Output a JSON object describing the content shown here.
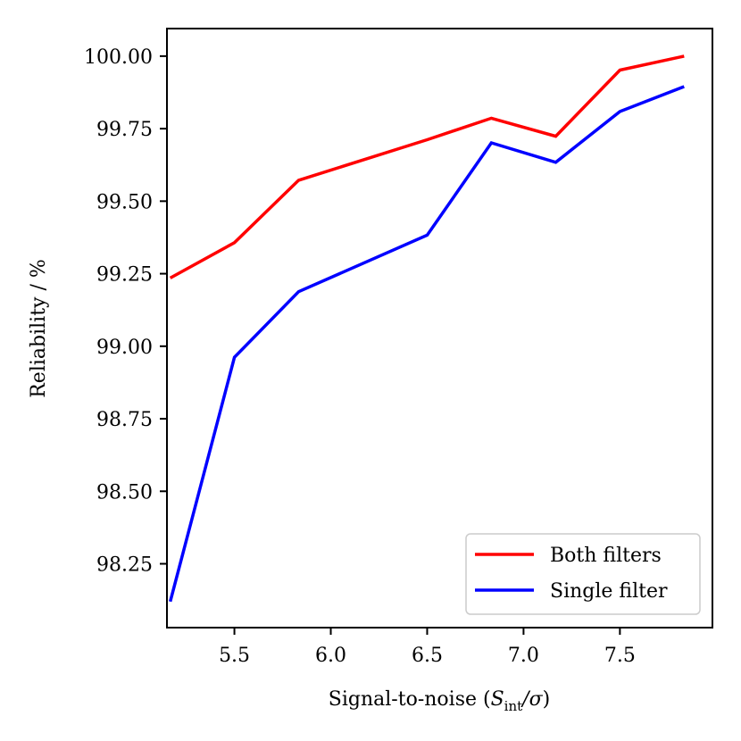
{
  "chart_data": {
    "type": "line",
    "title": "",
    "xlabel": "Signal-to-noise (",
    "xlabel_math": {
      "S": "S",
      "sub": "int",
      "rest": "/σ"
    },
    "xlabel_close": ")",
    "ylabel": "Reliability / %",
    "xlim": [
      5.15,
      7.98
    ],
    "ylim": [
      98.03,
      100.095
    ],
    "xticks": [
      5.5,
      6.0,
      6.5,
      7.0,
      7.5
    ],
    "xtick_labels": [
      "5.5",
      "6.0",
      "6.5",
      "7.0",
      "7.5"
    ],
    "yticks": [
      98.25,
      98.5,
      98.75,
      99.0,
      99.25,
      99.5,
      99.75,
      100.0
    ],
    "ytick_labels": [
      "98.25",
      "98.50",
      "98.75",
      "99.00",
      "99.25",
      "99.50",
      "99.75",
      "100.00"
    ],
    "grid": false,
    "legend_position": "bottom-right",
    "series": [
      {
        "name": "Both filters",
        "color": "#ff0000",
        "x": [
          5.167,
          5.5,
          5.833,
          6.5,
          6.833,
          7.167,
          7.5,
          7.833
        ],
        "y": [
          99.235,
          99.357,
          99.572,
          99.712,
          99.786,
          99.724,
          99.952,
          100.0
        ]
      },
      {
        "name": "Single filter",
        "color": "#0000ff",
        "x": [
          5.167,
          5.5,
          5.833,
          6.5,
          6.833,
          7.167,
          7.5,
          7.833
        ],
        "y": [
          98.12,
          98.962,
          99.188,
          99.383,
          99.701,
          99.634,
          99.809,
          99.895
        ]
      }
    ]
  }
}
